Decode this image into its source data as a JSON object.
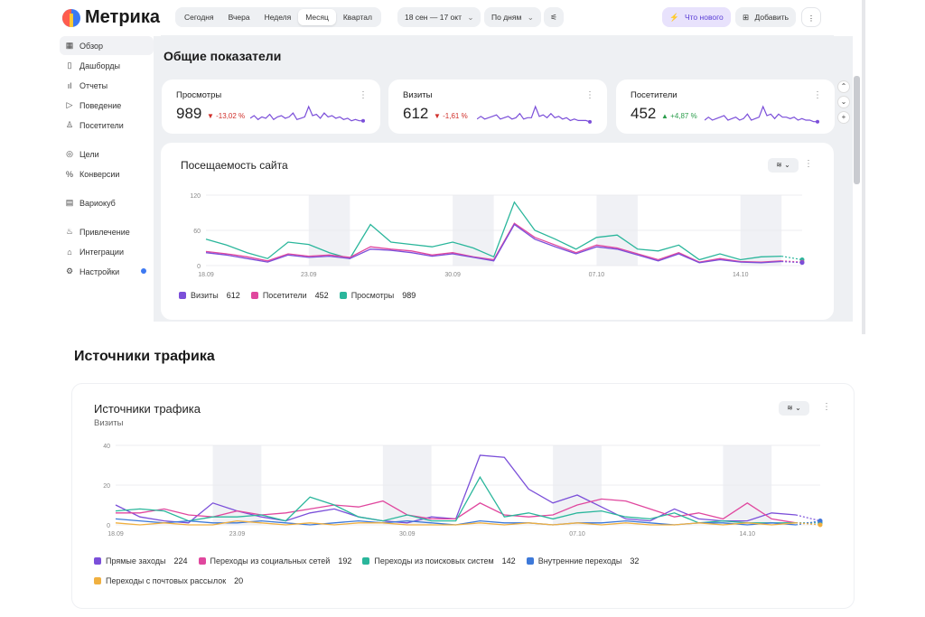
{
  "logo": {
    "name": "Метрика"
  },
  "nav": [
    {
      "label": "Обзор",
      "icon": "grid-icon",
      "glyph": "▦",
      "active": true
    },
    {
      "label": "Дашборды",
      "icon": "dashboard-icon",
      "glyph": "▯"
    },
    {
      "label": "Отчеты",
      "icon": "bar-chart-icon",
      "glyph": "ıl"
    },
    {
      "label": "Поведение",
      "icon": "play-icon",
      "glyph": "▷"
    },
    {
      "label": "Посетители",
      "icon": "user-icon",
      "glyph": "♙"
    },
    {
      "label": "Цели",
      "icon": "target-icon",
      "glyph": "◎"
    },
    {
      "label": "Конверсии",
      "icon": "percent-icon",
      "glyph": "%"
    },
    {
      "label": "Вариокуб",
      "icon": "cube-icon",
      "glyph": "▤"
    },
    {
      "label": "Привлечение",
      "icon": "flame-icon",
      "glyph": "♨"
    },
    {
      "label": "Интеграции",
      "icon": "puzzle-icon",
      "glyph": "⌂"
    },
    {
      "label": "Настройки",
      "icon": "gear-icon",
      "glyph": "⚙"
    }
  ],
  "topbar": {
    "periods": [
      "Сегодня",
      "Вчера",
      "Неделя",
      "Месяц",
      "Квартал"
    ],
    "active_period": "Месяц",
    "date_range": "18 сен — 17 окт",
    "grouping": "По дням",
    "whats_new": "Что нового",
    "add": "Добавить"
  },
  "overview": {
    "title": "Общие показатели",
    "kpis": [
      {
        "title": "Просмотры",
        "value": "989",
        "delta": "▼ -13,02 %",
        "trend": "down"
      },
      {
        "title": "Визиты",
        "value": "612",
        "delta": "▼ -1,61 %",
        "trend": "down"
      },
      {
        "title": "Посетители",
        "value": "452",
        "delta": "▲ +4,87 %",
        "trend": "up"
      }
    ]
  },
  "attendance": {
    "title": "Посещаемость сайта",
    "legend": [
      {
        "label": "Визиты",
        "value": "612",
        "color": "#7b4fd9"
      },
      {
        "label": "Посетители",
        "value": "452",
        "color": "#e0479e"
      },
      {
        "label": "Просмотры",
        "value": "989",
        "color": "#2ab69b"
      }
    ]
  },
  "traffic": {
    "section_title": "Источники трафика",
    "card_title": "Источники трафика",
    "subtitle": "Визиты",
    "legend": [
      {
        "label": "Прямые заходы",
        "value": "224",
        "color": "#7b4fd9"
      },
      {
        "label": "Переходы из социальных сетей",
        "value": "192",
        "color": "#e0479e"
      },
      {
        "label": "Переходы из поисковых систем",
        "value": "142",
        "color": "#2ab69b"
      },
      {
        "label": "Внутренние переходы",
        "value": "32",
        "color": "#3d79d9"
      },
      {
        "label": "Переходы с почтовых рассылок",
        "value": "20",
        "color": "#f0b040"
      }
    ]
  },
  "chart_data": [
    {
      "type": "line",
      "title": "Посещаемость сайта",
      "x_ticks": [
        "18.09",
        "23.09",
        "30.09",
        "07.10",
        "14.10"
      ],
      "ylim": [
        0,
        120
      ],
      "y_ticks": [
        0,
        60,
        120
      ],
      "series": [
        {
          "name": "Просмотры",
          "color": "#2ab69b",
          "values": [
            45,
            35,
            22,
            12,
            40,
            36,
            22,
            12,
            70,
            40,
            36,
            32,
            40,
            30,
            15,
            108,
            60,
            45,
            28,
            48,
            52,
            28,
            25,
            35,
            10,
            20,
            10,
            15,
            16,
            10
          ]
        },
        {
          "name": "Посетители",
          "color": "#e0479e",
          "values": [
            24,
            20,
            15,
            8,
            20,
            16,
            18,
            14,
            32,
            28,
            25,
            18,
            22,
            15,
            10,
            72,
            48,
            35,
            22,
            35,
            30,
            20,
            10,
            22,
            6,
            12,
            7,
            6,
            8,
            6
          ]
        },
        {
          "name": "Визиты",
          "color": "#7b4fd9",
          "values": [
            22,
            18,
            12,
            6,
            18,
            14,
            16,
            12,
            28,
            26,
            22,
            16,
            20,
            14,
            8,
            70,
            45,
            32,
            20,
            32,
            28,
            18,
            8,
            20,
            5,
            10,
            6,
            5,
            7,
            5
          ]
        }
      ]
    },
    {
      "type": "line",
      "title": "Источники трафика",
      "x_ticks": [
        "18.09",
        "23.09",
        "30.09",
        "07.10",
        "14.10"
      ],
      "ylim": [
        0,
        40
      ],
      "y_ticks": [
        0,
        20,
        40
      ],
      "series": [
        {
          "name": "Прямые заходы",
          "color": "#7b4fd9",
          "values": [
            10,
            4,
            2,
            1,
            11,
            7,
            4,
            2,
            6,
            8,
            4,
            2,
            1,
            4,
            3,
            35,
            34,
            18,
            11,
            15,
            9,
            3,
            2,
            8,
            3,
            2,
            2,
            6,
            5,
            2
          ]
        },
        {
          "name": "Переходы из социальных сетей",
          "color": "#e0479e",
          "values": [
            6,
            6,
            8,
            5,
            4,
            7,
            5,
            6,
            8,
            10,
            9,
            12,
            5,
            3,
            3,
            11,
            5,
            4,
            5,
            10,
            13,
            12,
            8,
            4,
            6,
            3,
            11,
            3,
            1,
            1
          ]
        },
        {
          "name": "Переходы из поисковых систем",
          "color": "#2ab69b",
          "values": [
            7,
            8,
            7,
            2,
            4,
            4,
            5,
            2,
            14,
            10,
            4,
            2,
            5,
            2,
            2,
            24,
            4,
            6,
            3,
            6,
            7,
            4,
            3,
            6,
            1,
            2,
            1,
            1,
            1,
            1
          ]
        },
        {
          "name": "Внутренние переходы",
          "color": "#3d79d9",
          "values": [
            3,
            2,
            1,
            2,
            1,
            1,
            2,
            1,
            0,
            1,
            2,
            1,
            2,
            1,
            0,
            2,
            1,
            1,
            0,
            1,
            1,
            2,
            1,
            0,
            1,
            1,
            0,
            1,
            0,
            2
          ]
        },
        {
          "name": "Переходы с почтовых рассылок",
          "color": "#f0b040",
          "values": [
            1,
            0,
            1,
            0,
            0,
            2,
            1,
            0,
            1,
            0,
            1,
            1,
            0,
            0,
            0,
            1,
            0,
            1,
            0,
            1,
            0,
            1,
            0,
            0,
            1,
            0,
            1,
            0,
            1,
            0
          ]
        }
      ]
    }
  ]
}
